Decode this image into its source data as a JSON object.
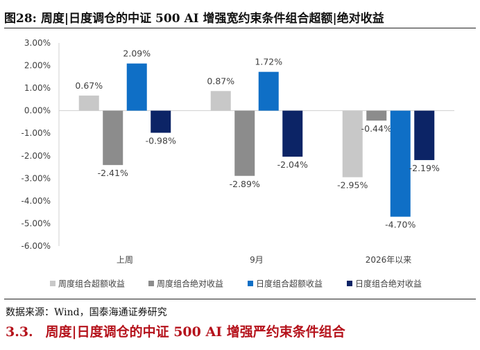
{
  "figure": {
    "number": "图28:",
    "title": "周度|日度调仓的中证 500 AI 增强宽约束条件组合超额|绝对收益"
  },
  "chart_data": {
    "type": "bar",
    "categories": [
      "上周",
      "9月",
      "2026年以来"
    ],
    "series": [
      {
        "name": "周度组合超额收益",
        "color": "#c8c8c8",
        "values": [
          0.67,
          0.87,
          -2.95
        ]
      },
      {
        "name": "周度组合绝对收益",
        "color": "#8c8c8c",
        "values": [
          -2.41,
          -2.89,
          -0.44
        ]
      },
      {
        "name": "日度组合超额收益",
        "color": "#0f6fc6",
        "values": [
          2.09,
          1.72,
          -4.7
        ]
      },
      {
        "name": "日度组合绝对收益",
        "color": "#0c2466",
        "values": [
          -0.98,
          -2.04,
          -2.19
        ]
      }
    ],
    "ylim": [
      -6.0,
      3.0
    ],
    "ytick_step": 1.0,
    "yticks": [
      "3.00%",
      "2.00%",
      "1.00%",
      "0.00%",
      "-1.00%",
      "-2.00%",
      "-3.00%",
      "-4.00%",
      "-5.00%",
      "-6.00%"
    ],
    "data_labels": [
      [
        "0.67%",
        "0.87%",
        "-2.95%"
      ],
      [
        "-2.41%",
        "-2.89%",
        "-0.44%"
      ],
      [
        "2.09%",
        "1.72%",
        "-4.70%"
      ],
      [
        "-0.98%",
        "-2.04%",
        "-2.19%"
      ]
    ],
    "legend_position": "bottom",
    "grid": false
  },
  "source": "数据来源：Wind，国泰海通证券研究",
  "section": {
    "number": "3.3.",
    "title": "周度|日度调仓的中证 500 AI 增强严约束条件组合"
  }
}
